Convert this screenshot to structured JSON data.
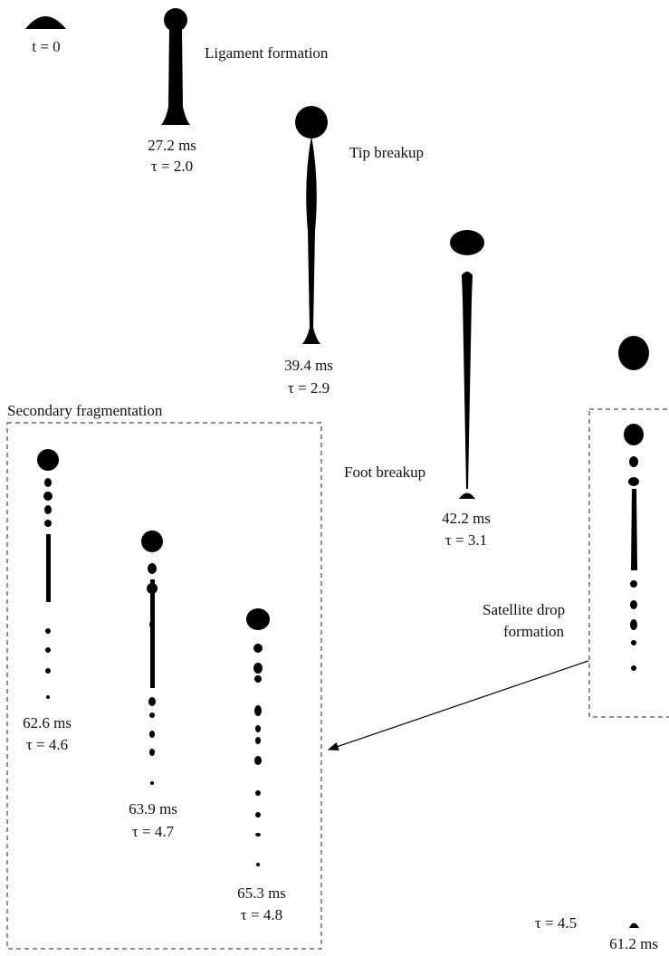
{
  "initial": "t = 0",
  "stages": {
    "ligament": "Ligament formation",
    "tip": "Tip breakup",
    "foot": "Foot breakup",
    "secondary": "Secondary fragmentation",
    "satellite": [
      "Satellite drop",
      "formation"
    ]
  },
  "snapshots": [
    {
      "time": "27.2 ms",
      "tau": "τ = 2.0"
    },
    {
      "time": "39.4 ms",
      "tau": "τ = 2.9"
    },
    {
      "time": "42.2 ms",
      "tau": "τ = 3.1"
    },
    {
      "time": "61.2 ms",
      "tau": "τ = 4.5"
    },
    {
      "time": "62.6 ms",
      "tau": "τ = 4.6"
    },
    {
      "time": "63.9 ms",
      "tau": "τ = 4.7"
    },
    {
      "time": "65.3 ms",
      "tau": "τ = 4.8"
    }
  ]
}
